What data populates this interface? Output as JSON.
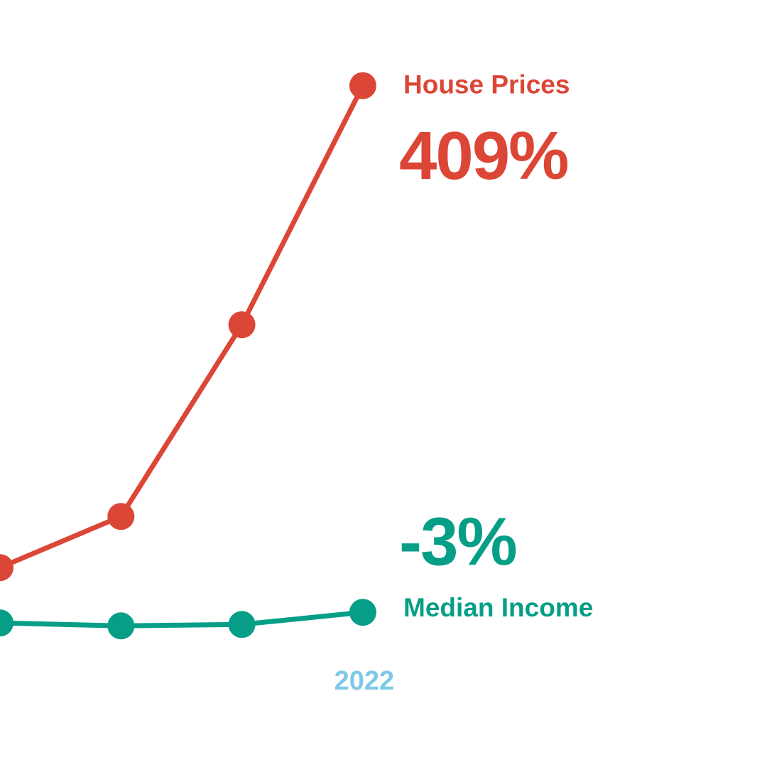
{
  "chart_data": {
    "type": "line",
    "categories": [
      null,
      null,
      null,
      "2022"
    ],
    "series": [
      {
        "name": "House Prices",
        "color": "#dc4636",
        "values": [
          32,
          72,
          222,
          409
        ],
        "value_labels": [
          null,
          null,
          null,
          "409%"
        ]
      },
      {
        "name": "Median Income",
        "color": "#069e87",
        "values": [
          -11.3,
          -13.6,
          -12.5,
          -3
        ],
        "value_labels": [
          null,
          null,
          null,
          "-3%"
        ]
      }
    ],
    "x_label_color": "#7ec8e8",
    "ylim": [
      -124,
      476
    ]
  }
}
